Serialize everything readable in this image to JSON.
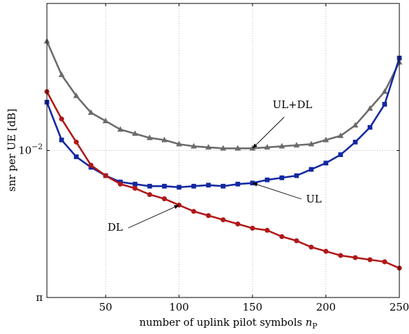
{
  "chart_data": {
    "type": "line",
    "xlabel": "number of uplink pilot symbols",
    "xlabel_math": "n",
    "xlabel_sub": "P",
    "ylabel": "snr per UE [dB]",
    "xlim": [
      10,
      250
    ],
    "ylim_log10": [
      -2.7,
      -1.3
    ],
    "x_ticks": [
      50,
      100,
      150,
      200,
      250
    ],
    "y_ticks": [
      {
        "log10": -2.0,
        "label_base": "10",
        "label_exp": "−2"
      },
      {
        "log10": -2.7,
        "label_base": "π",
        "label_exp": ""
      }
    ],
    "grid": true,
    "x": [
      10,
      20,
      30,
      40,
      50,
      60,
      70,
      80,
      90,
      100,
      110,
      120,
      130,
      140,
      150,
      160,
      170,
      180,
      190,
      200,
      210,
      220,
      230,
      240,
      250
    ],
    "series": [
      {
        "name": "UL+DL",
        "color": "#6b6b6b",
        "marker": "triangle",
        "log10_values": [
          -1.48,
          -1.64,
          -1.74,
          -1.82,
          -1.86,
          -1.9,
          -1.92,
          -1.94,
          -1.95,
          -1.97,
          -1.98,
          -1.985,
          -1.99,
          -1.99,
          -1.99,
          -1.985,
          -1.98,
          -1.975,
          -1.97,
          -1.95,
          -1.93,
          -1.88,
          -1.8,
          -1.72,
          -1.58
        ]
      },
      {
        "name": "UL",
        "color": "#1428a0",
        "marker": "square",
        "log10_values": [
          -1.77,
          -1.95,
          -2.03,
          -2.08,
          -2.12,
          -2.15,
          -2.16,
          -2.17,
          -2.17,
          -2.175,
          -2.17,
          -2.165,
          -2.17,
          -2.16,
          -2.155,
          -2.14,
          -2.13,
          -2.12,
          -2.09,
          -2.06,
          -2.02,
          -1.96,
          -1.89,
          -1.78,
          -1.56
        ]
      },
      {
        "name": "DL",
        "color": "#b01818",
        "marker": "circle",
        "log10_values": [
          -1.72,
          -1.85,
          -1.96,
          -2.07,
          -2.12,
          -2.16,
          -2.18,
          -2.21,
          -2.23,
          -2.26,
          -2.29,
          -2.31,
          -2.33,
          -2.35,
          -2.37,
          -2.38,
          -2.41,
          -2.43,
          -2.46,
          -2.48,
          -2.5,
          -2.51,
          -2.52,
          -2.53,
          -2.56
        ]
      }
    ],
    "annotations": [
      {
        "text": "UL+DL",
        "target_series": "UL+DL",
        "target_x": 150
      },
      {
        "text": "UL",
        "target_series": "UL",
        "target_x": 150
      },
      {
        "text": "DL",
        "target_series": "DL",
        "target_x": 100
      }
    ]
  }
}
